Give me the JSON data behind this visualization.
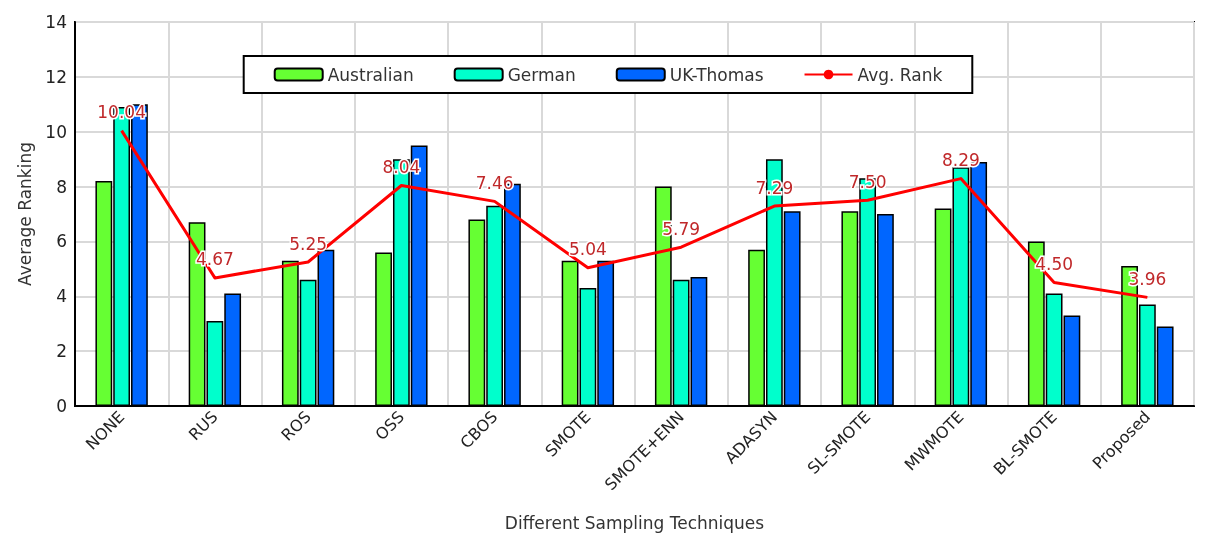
{
  "chart_data": {
    "type": "bar",
    "xlabel": "Different Sampling Techniques",
    "ylabel": "Average Ranking",
    "categories": [
      "NONE",
      "RUS",
      "ROS",
      "OSS",
      "CBOS",
      "SMOTE",
      "SMOTE+ENN",
      "ADASYN",
      "SL-SMOTE",
      "MWMOTE",
      "BL-SMOTE",
      "Proposed"
    ],
    "series": [
      {
        "name": "Australian",
        "color": "#66ff33",
        "values": [
          8.2,
          6.7,
          5.3,
          5.6,
          6.8,
          5.3,
          8.0,
          5.7,
          7.1,
          7.2,
          6.0,
          5.1
        ]
      },
      {
        "name": "German",
        "color": "#00ffcc",
        "values": [
          10.9,
          3.1,
          4.6,
          9.0,
          7.3,
          4.3,
          4.6,
          9.0,
          8.3,
          8.7,
          4.1,
          3.7
        ]
      },
      {
        "name": "UK-Thomas",
        "color": "#0066ff",
        "values": [
          11.0,
          4.1,
          5.7,
          9.5,
          8.1,
          5.3,
          4.7,
          7.1,
          7.0,
          8.9,
          3.3,
          2.9
        ]
      },
      {
        "name": "Avg. Rank",
        "type": "line",
        "color": "#ff0000",
        "values": [
          10.04,
          4.67,
          5.25,
          8.04,
          7.46,
          5.04,
          5.79,
          7.29,
          7.5,
          8.29,
          4.5,
          3.96
        ],
        "value_labels": [
          "10.04",
          "4.67",
          "5.25",
          "8.04",
          "7.46",
          "5.04",
          "5.79",
          "7.29",
          "7.50",
          "8.29",
          "4.50",
          "3.96"
        ],
        "marker": "none"
      }
    ],
    "ylim": [
      0,
      14
    ],
    "yticks": [
      0,
      2,
      4,
      6,
      8,
      10,
      12,
      14
    ],
    "grid": true,
    "legend": "top"
  }
}
